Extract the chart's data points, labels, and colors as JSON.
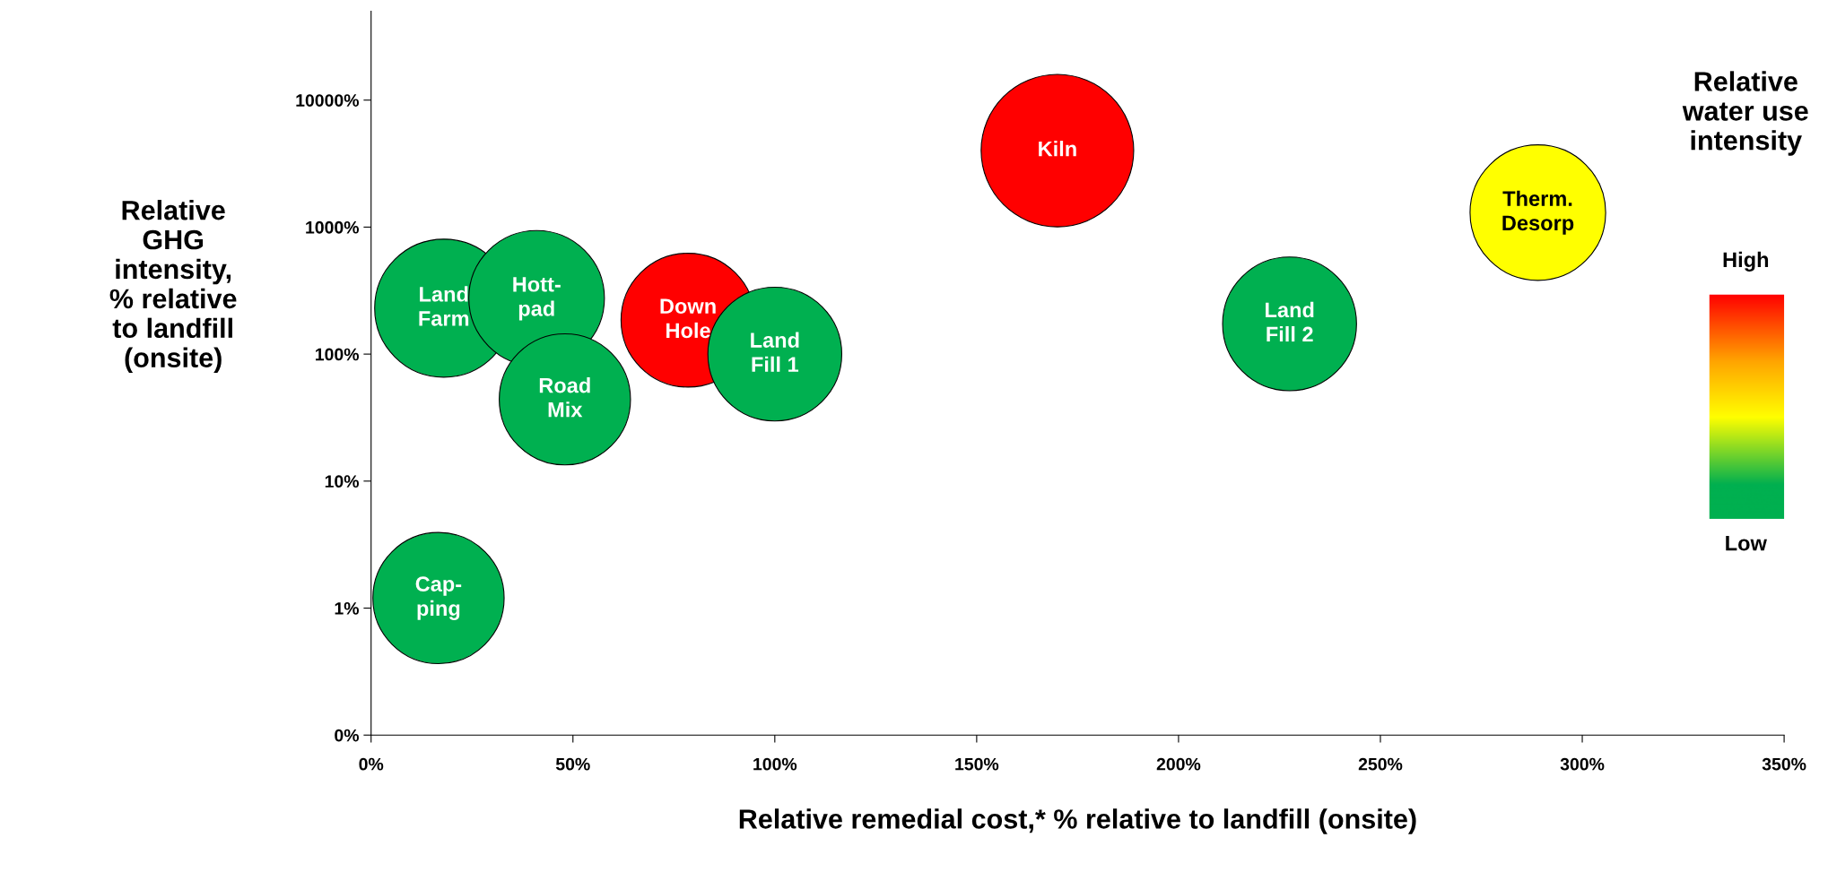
{
  "chart_data": {
    "type": "bubble",
    "xlabel": "Relative remedial cost,* % relative to landfill (onsite)",
    "ylabel": "Relative\nGHG\nintensity,\n% relative\nto landfill\n(onsite)",
    "x": [
      18,
      41,
      48,
      78.5,
      100,
      170,
      289,
      227.5,
      16.7
    ],
    "values": [
      230,
      275,
      44,
      185,
      100,
      4000,
      1300,
      173,
      1.2
    ],
    "sizes": [
      0.82,
      0.79,
      0.74,
      0.77,
      0.77,
      1,
      0.79,
      0.77,
      0.74
    ],
    "colors": [
      "#00b050",
      "#00b050",
      "#00b050",
      "#ff0000",
      "#00b050",
      "#ff0000",
      "#ffff00",
      "#00b050",
      "#00b050"
    ],
    "log": "y",
    "xlim": [
      0,
      350
    ],
    "ylim": [
      0.1,
      50000
    ],
    "xticks": [
      {
        "value": 0,
        "label": "0%"
      },
      {
        "value": 50,
        "label": "50%"
      },
      {
        "value": 100,
        "label": "100%"
      },
      {
        "value": 150,
        "label": "150%"
      },
      {
        "value": 200,
        "label": "200%"
      },
      {
        "value": 250,
        "label": "250%"
      },
      {
        "value": 300,
        "label": "300%"
      },
      {
        "value": 350,
        "label": "350%"
      }
    ],
    "yticks": [
      {
        "value": 0.1,
        "label": "0%"
      },
      {
        "value": 1,
        "label": "1%"
      },
      {
        "value": 10,
        "label": "10%"
      },
      {
        "value": 100,
        "label": "100%"
      },
      {
        "value": 1000,
        "label": "1000%"
      },
      {
        "value": 10000,
        "label": "10000%"
      }
    ],
    "grid": false,
    "annotations": [
      {
        "text": "Land\nFarm",
        "x": 18,
        "y": 230
      },
      {
        "text": "Hott-\npad",
        "x": 41,
        "y": 275
      },
      {
        "text": "Road\nMix",
        "x": 48,
        "y": 44
      },
      {
        "text": "Down\nHole",
        "x": 78.5,
        "y": 185
      },
      {
        "text": "Land\nFill 1",
        "x": 100,
        "y": 100
      },
      {
        "text": "Kiln",
        "x": 170,
        "y": 4000
      },
      {
        "text": "Therm.\nDesorp",
        "x": 289,
        "y": 1300
      },
      {
        "text": "Land\nFill 2",
        "x": 227.5,
        "y": 173
      },
      {
        "text": "Cap-\nping",
        "x": 16.7,
        "y": 1.2
      },
      "Relative\nwater use\nintensity",
      "High",
      "Low"
    ]
  }
}
